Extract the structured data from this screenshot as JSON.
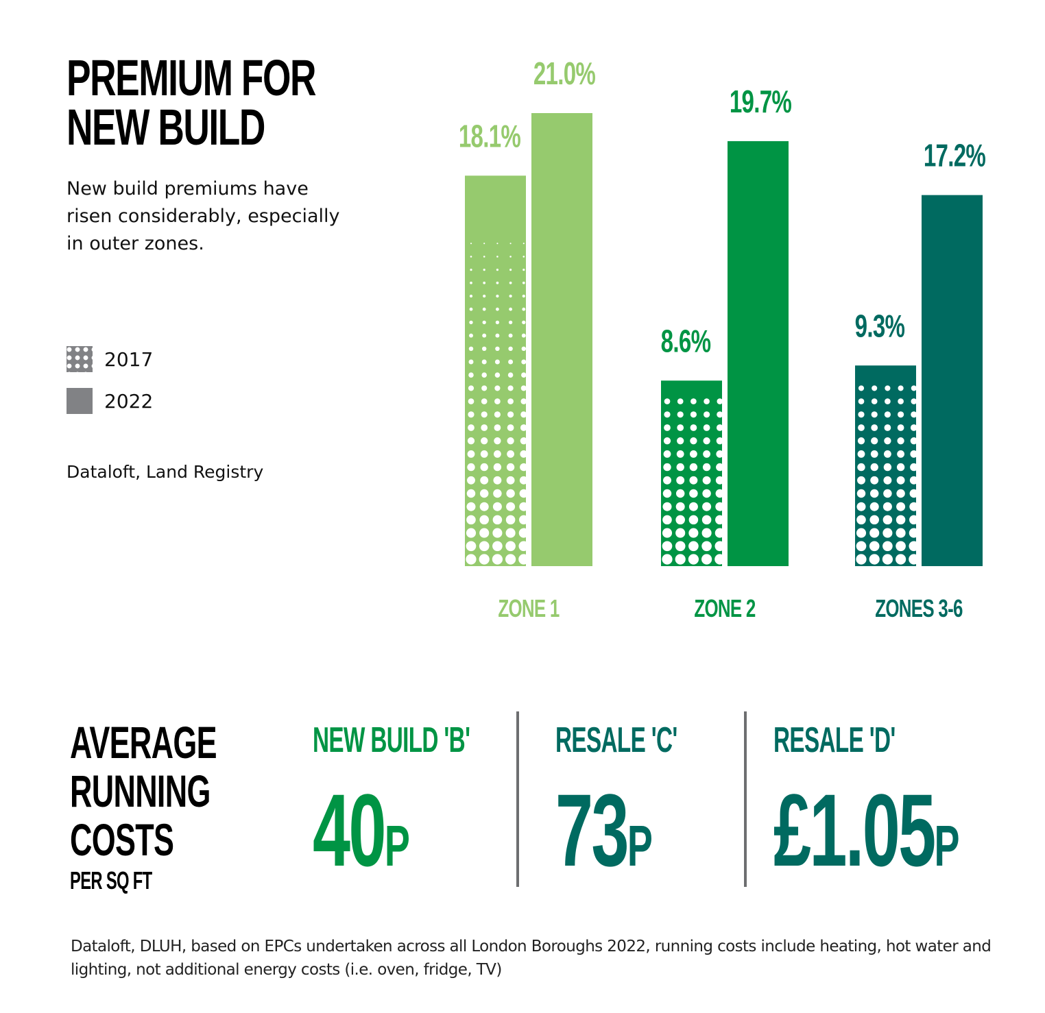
{
  "title_lines": [
    "PREMIUM FOR",
    "NEW BUILD"
  ],
  "subtitle": "New build premiums have risen considerably, especially in outer zones.",
  "legend": [
    {
      "label": "2017",
      "pattern": "dots",
      "color": "#818285"
    },
    {
      "label": "2022",
      "pattern": "solid",
      "color": "#818285"
    }
  ],
  "source_chart": "Dataloft, Land Registry",
  "chart_data": {
    "type": "bar",
    "title": "PREMIUM FOR NEW BUILD",
    "xlabel": "",
    "ylabel": "",
    "ylim": [
      0,
      21.0
    ],
    "grid": false,
    "legend_position": "left",
    "categories": [
      "ZONE 1",
      "ZONE 2",
      "ZONES 3-6"
    ],
    "category_colors": [
      "#96ca6e",
      "#009444",
      "#006a60"
    ],
    "series": [
      {
        "name": "2017",
        "pattern": "dots",
        "values": [
          18.1,
          8.6,
          9.3
        ],
        "labels": [
          "18.1%",
          "8.6%",
          "9.3%"
        ]
      },
      {
        "name": "2022",
        "pattern": "solid",
        "values": [
          21.0,
          19.7,
          17.2
        ],
        "labels": [
          "21.0%",
          "19.7%",
          "17.2%"
        ]
      }
    ]
  },
  "running_costs": {
    "title_lines": [
      "AVERAGE",
      "RUNNING",
      "COSTS"
    ],
    "subtitle": "PER SQ FT",
    "items": [
      {
        "heading": "NEW BUILD 'B'",
        "value": "40",
        "unit": "P",
        "color": "#009444"
      },
      {
        "heading": "RESALE 'C'",
        "value": "73",
        "unit": "P",
        "color": "#006a60"
      },
      {
        "heading": "RESALE 'D'",
        "value": "£1.05",
        "unit": "P",
        "color": "#006a60"
      }
    ]
  },
  "source_costs": "Dataloft, DLUH, based on EPCs undertaken across all London Boroughs 2022, running costs include heating, hot water and lighting, not additional energy costs (i.e. oven, fridge, TV)"
}
